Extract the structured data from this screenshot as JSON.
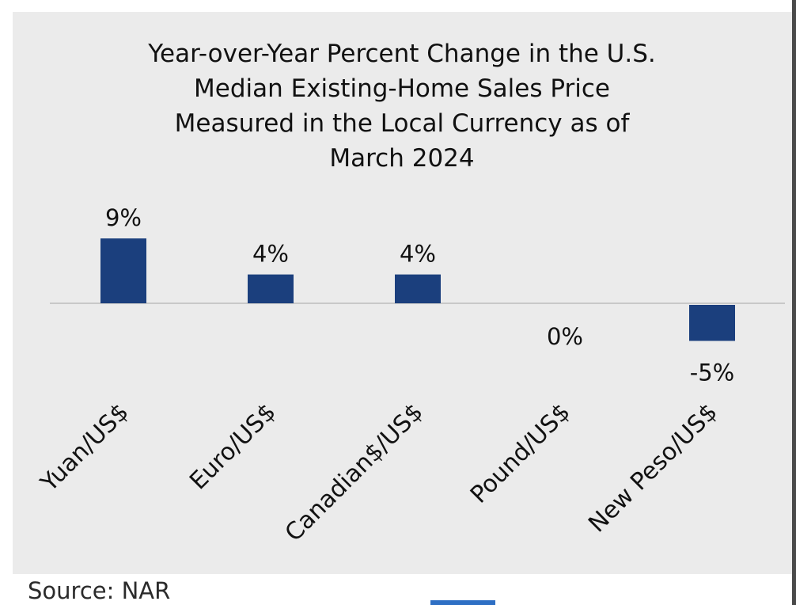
{
  "chart_data": {
    "type": "bar",
    "title_lines": [
      "Year-over-Year Percent Change in the U.S.",
      "Median Existing-Home Sales Price",
      "Measured in the Local Currency as of",
      "March 2024"
    ],
    "categories": [
      "Yuan/US$",
      "Euro/US$",
      "Canadian$/US$",
      "Pound/US$",
      "New Peso/US$"
    ],
    "values": [
      9,
      4,
      4,
      0,
      -5
    ],
    "data_labels": [
      "9%",
      "4%",
      "4%",
      "0%",
      "-5%"
    ],
    "ylim": [
      -10,
      13
    ],
    "bar_color": "#1b3f7d",
    "grid": false
  },
  "source": "Source: NAR"
}
